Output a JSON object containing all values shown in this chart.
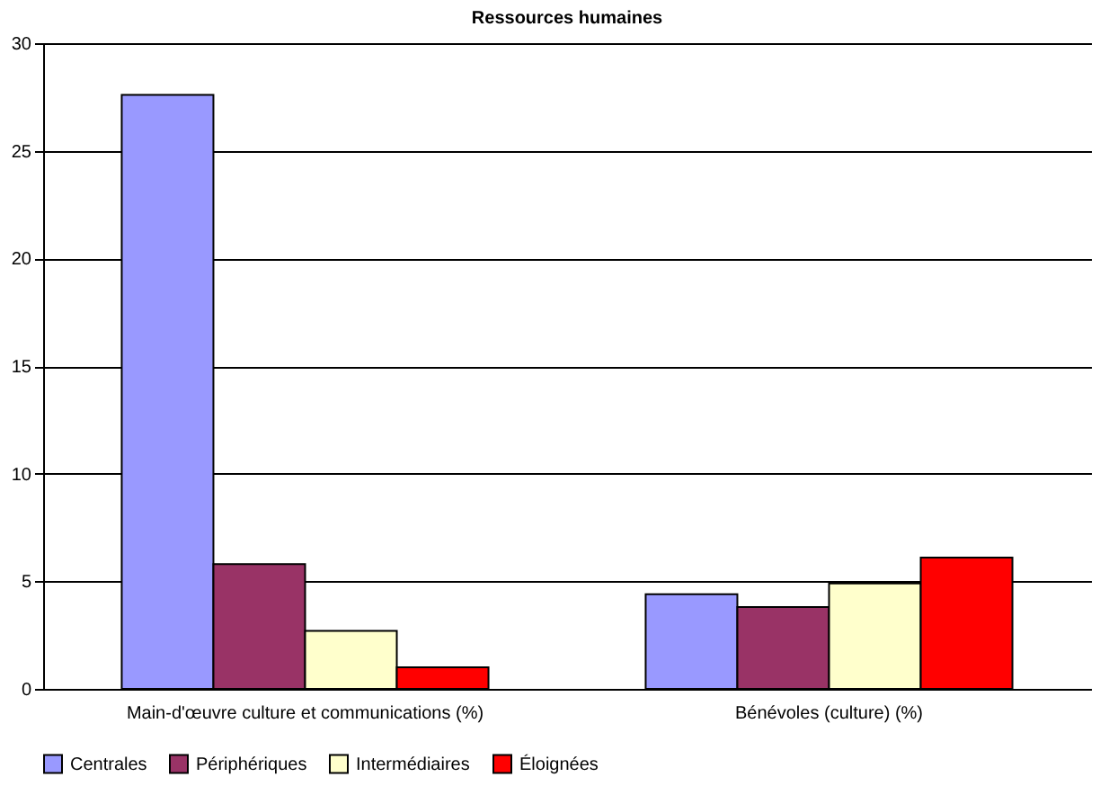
{
  "chart_data": {
    "type": "bar",
    "title": "Ressources humaines",
    "categories": [
      "Main-d'œuvre culture et communications (%)",
      "Bénévoles (culture) (%)"
    ],
    "series": [
      {
        "name": "Centrales",
        "color": "#9999ff",
        "values": [
          27.6,
          4.4
        ]
      },
      {
        "name": "Périphériques",
        "color": "#993366",
        "values": [
          5.8,
          3.8
        ]
      },
      {
        "name": "Intermédiaires",
        "color": "#ffffcc",
        "values": [
          2.7,
          4.9
        ]
      },
      {
        "name": "Éloignées",
        "color": "#ff0000",
        "values": [
          1.0,
          6.1
        ]
      }
    ],
    "ylim": [
      0,
      30
    ],
    "yticks": [
      0,
      5,
      10,
      15,
      20,
      25,
      30
    ],
    "grid": "y",
    "legend": "bottom"
  }
}
